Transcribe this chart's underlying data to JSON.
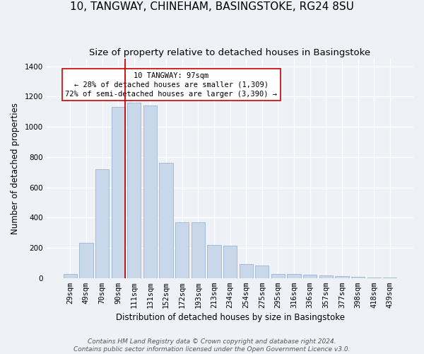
{
  "title": "10, TANGWAY, CHINEHAM, BASINGSTOKE, RG24 8SU",
  "subtitle": "Size of property relative to detached houses in Basingstoke",
  "xlabel": "Distribution of detached houses by size in Basingstoke",
  "ylabel": "Number of detached properties",
  "footer_line1": "Contains HM Land Registry data © Crown copyright and database right 2024.",
  "footer_line2": "Contains public sector information licensed under the Open Government Licence v3.0.",
  "categories": [
    "29sqm",
    "49sqm",
    "70sqm",
    "90sqm",
    "111sqm",
    "131sqm",
    "152sqm",
    "172sqm",
    "193sqm",
    "213sqm",
    "234sqm",
    "254sqm",
    "275sqm",
    "295sqm",
    "316sqm",
    "336sqm",
    "357sqm",
    "377sqm",
    "398sqm",
    "418sqm",
    "439sqm"
  ],
  "values": [
    25,
    235,
    720,
    1130,
    1160,
    1140,
    760,
    370,
    370,
    220,
    215,
    90,
    85,
    28,
    28,
    20,
    16,
    12,
    8,
    5,
    2
  ],
  "bar_color": "#c8d8ea",
  "bar_edge_color": "#9ab4cc",
  "vline_color": "#cc0000",
  "vline_x": 3.43,
  "annotation_text": "10 TANGWAY: 97sqm\n← 28% of detached houses are smaller (1,309)\n72% of semi-detached houses are larger (3,390) →",
  "annotation_box_color": "#ffffff",
  "annotation_box_edge": "#cc0000",
  "ylim": [
    0,
    1450
  ],
  "yticks": [
    0,
    200,
    400,
    600,
    800,
    1000,
    1200,
    1400
  ],
  "background_color": "#eef2f7",
  "plot_background": "#eef2f7",
  "grid_color": "#ffffff",
  "title_fontsize": 11,
  "subtitle_fontsize": 9.5,
  "axis_label_fontsize": 8.5,
  "tick_fontsize": 7.5,
  "annotation_fontsize": 7.5,
  "footer_fontsize": 6.5
}
